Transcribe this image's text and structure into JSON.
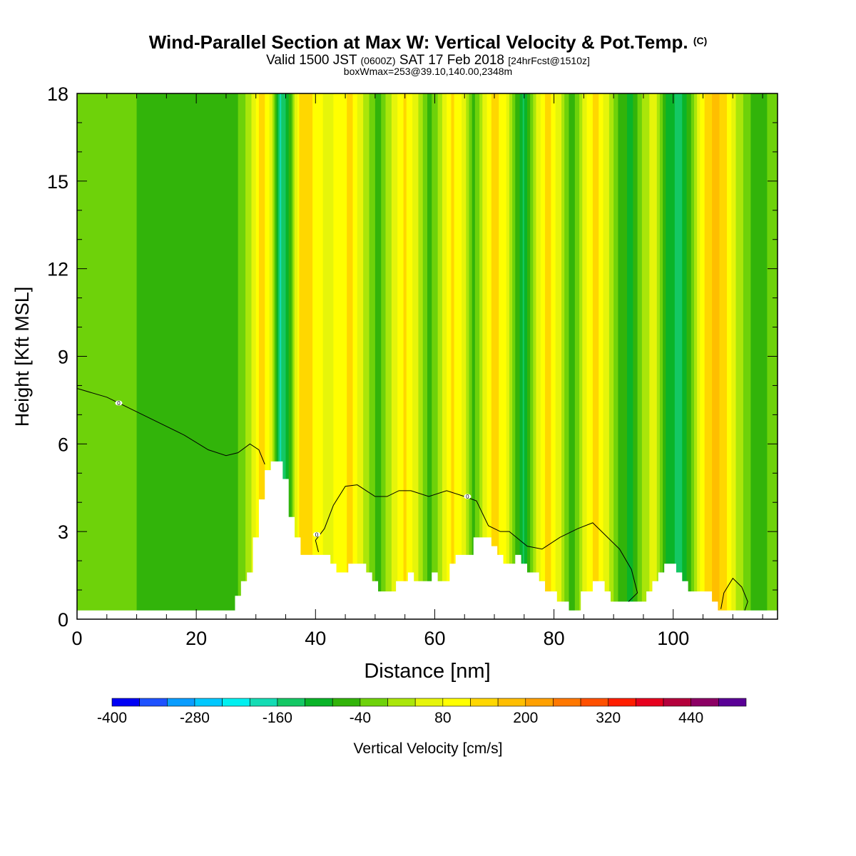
{
  "header": {
    "title": "Wind-Parallel Section at Max W: Vertical Velocity & Pot.Temp.",
    "copyright": "(C)",
    "valid_prefix": "Valid 1500 JST",
    "valid_utc": "(0600Z)",
    "valid_date": "SAT 17 Feb 2018",
    "forecast": "[24hrFcst@1510z]",
    "box_info": "boxWmax=253@39.10,140.00,2348m"
  },
  "chart_data": {
    "type": "heatmap",
    "title": "Wind-Parallel Section at Max W: Vertical Velocity & Pot.Temp.",
    "xlabel": "Distance [nm]",
    "ylabel": "Height [Kft MSL]",
    "xlim": [
      0,
      117.5
    ],
    "ylim": [
      0,
      18
    ],
    "x_ticks": [
      0,
      20,
      40,
      60,
      80,
      100
    ],
    "y_ticks": [
      0,
      3,
      6,
      9,
      12,
      15,
      18
    ],
    "grid": false,
    "colorbar": {
      "label": "Vertical Velocity [cm/s]",
      "tick_labels": [
        "-400",
        "-280",
        "-160",
        "-40",
        "80",
        "200",
        "320",
        "440"
      ],
      "bounds": [
        -400,
        -360,
        -320,
        -280,
        -240,
        -200,
        -160,
        -120,
        -80,
        -40,
        0,
        40,
        80,
        120,
        160,
        200,
        240,
        280,
        320,
        360,
        400,
        440,
        480,
        520
      ],
      "colors": [
        "#0000f5",
        "#1e52ff",
        "#0a9dff",
        "#00c8ff",
        "#00f0f0",
        "#14dcb4",
        "#14c864",
        "#0ab428",
        "#32b40a",
        "#6ed20a",
        "#aae60a",
        "#e6f50a",
        "#ffff00",
        "#ffd700",
        "#ffbe00",
        "#ffa000",
        "#ff7800",
        "#ff5000",
        "#ff1e00",
        "#e6001e",
        "#b4003c",
        "#8c0064",
        "#5a0096"
      ]
    },
    "velocity_columns": [
      {
        "x": 0,
        "w": -15
      },
      {
        "x": 5,
        "w": -15
      },
      {
        "x": 10,
        "w": -40
      },
      {
        "x": 15,
        "w": -50
      },
      {
        "x": 20,
        "w": -55
      },
      {
        "x": 24,
        "w": -70
      },
      {
        "x": 27,
        "w": -40
      },
      {
        "x": 29,
        "w": 20
      },
      {
        "x": 31,
        "w": 150
      },
      {
        "x": 32.5,
        "w": 60
      },
      {
        "x": 34,
        "w": -170
      },
      {
        "x": 35.5,
        "w": -90
      },
      {
        "x": 37.5,
        "w": 150
      },
      {
        "x": 40,
        "w": 110
      },
      {
        "x": 42,
        "w": 60
      },
      {
        "x": 44,
        "w": 100
      },
      {
        "x": 46,
        "w": 130
      },
      {
        "x": 48,
        "w": 40
      },
      {
        "x": 50.5,
        "w": -60
      },
      {
        "x": 53,
        "w": 50
      },
      {
        "x": 55,
        "w": 130
      },
      {
        "x": 57,
        "w": 50
      },
      {
        "x": 59,
        "w": -60
      },
      {
        "x": 61,
        "w": 20
      },
      {
        "x": 63,
        "w": 130
      },
      {
        "x": 65,
        "w": 60
      },
      {
        "x": 66.5,
        "w": -60
      },
      {
        "x": 68,
        "w": 40
      },
      {
        "x": 70,
        "w": 150
      },
      {
        "x": 72,
        "w": 80
      },
      {
        "x": 73.5,
        "w": -40
      },
      {
        "x": 75,
        "w": -130
      },
      {
        "x": 77,
        "w": 40
      },
      {
        "x": 79,
        "w": 140
      },
      {
        "x": 81,
        "w": 50
      },
      {
        "x": 83,
        "w": -80
      },
      {
        "x": 85,
        "w": 60
      },
      {
        "x": 87,
        "w": 140
      },
      {
        "x": 89,
        "w": 50
      },
      {
        "x": 91,
        "w": -60
      },
      {
        "x": 93,
        "w": -90
      },
      {
        "x": 95,
        "w": 20
      },
      {
        "x": 97,
        "w": 60
      },
      {
        "x": 99,
        "w": -90
      },
      {
        "x": 101,
        "w": -140
      },
      {
        "x": 103,
        "w": -40
      },
      {
        "x": 105,
        "w": 110
      },
      {
        "x": 107,
        "w": 180
      },
      {
        "x": 109,
        "w": 120
      },
      {
        "x": 111,
        "w": 20
      },
      {
        "x": 113,
        "w": -40
      },
      {
        "x": 115,
        "w": -50
      },
      {
        "x": 117.5,
        "w": -20
      }
    ],
    "terrain_heights_kft": [
      [
        0,
        0.3
      ],
      [
        25.5,
        0.3
      ],
      [
        26.5,
        0.8
      ],
      [
        27.5,
        1.3
      ],
      [
        28.5,
        1.6
      ],
      [
        29.5,
        2.8
      ],
      [
        30.5,
        4.1
      ],
      [
        31.5,
        5.1
      ],
      [
        32.5,
        5.4
      ],
      [
        34.5,
        4.8
      ],
      [
        35.5,
        3.5
      ],
      [
        36.5,
        2.8
      ],
      [
        37.5,
        2.2
      ],
      [
        40.5,
        2.2
      ],
      [
        42.5,
        1.9
      ],
      [
        43.5,
        1.6
      ],
      [
        45.5,
        1.9
      ],
      [
        48.5,
        1.6
      ],
      [
        49.5,
        1.3
      ],
      [
        50.5,
        0.95
      ],
      [
        53.5,
        1.3
      ],
      [
        55.5,
        1.6
      ],
      [
        56.5,
        1.3
      ],
      [
        59.5,
        1.6
      ],
      [
        60.5,
        1.3
      ],
      [
        62.5,
        1.9
      ],
      [
        63.5,
        2.2
      ],
      [
        66.5,
        2.8
      ],
      [
        69.5,
        2.5
      ],
      [
        70.5,
        2.2
      ],
      [
        71.5,
        1.9
      ],
      [
        73.5,
        2.2
      ],
      [
        74.5,
        1.9
      ],
      [
        75.5,
        1.6
      ],
      [
        77.5,
        1.3
      ],
      [
        78.5,
        0.95
      ],
      [
        80.5,
        0.6
      ],
      [
        82.5,
        0.3
      ],
      [
        84.5,
        0.95
      ],
      [
        86.5,
        1.3
      ],
      [
        88.5,
        0.95
      ],
      [
        89.5,
        0.6
      ],
      [
        95.5,
        0.95
      ],
      [
        96.5,
        1.3
      ],
      [
        97.5,
        1.6
      ],
      [
        98.5,
        1.9
      ],
      [
        100.5,
        1.6
      ],
      [
        101.5,
        1.3
      ],
      [
        102.5,
        0.95
      ],
      [
        106.5,
        0.6
      ],
      [
        107.5,
        0.3
      ],
      [
        117.5,
        0.3
      ]
    ],
    "contour_label": "0"
  }
}
